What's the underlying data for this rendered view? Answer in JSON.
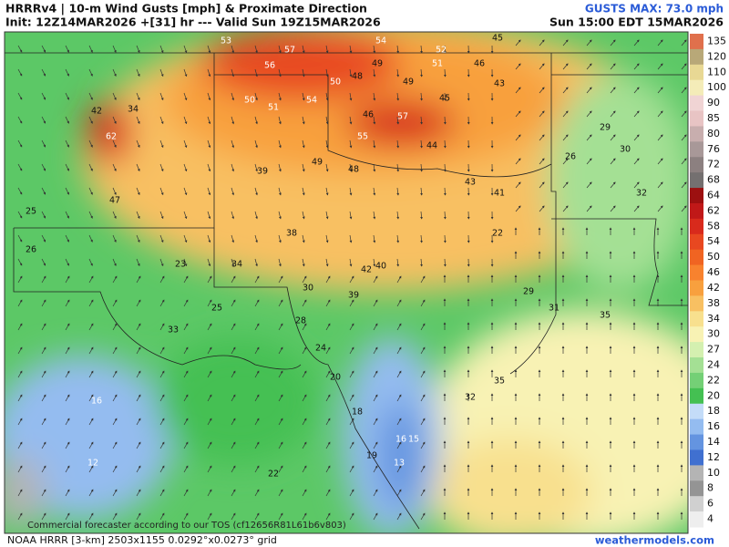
{
  "header": {
    "title": "HRRRv4 | 10-m Wind Gusts [mph] & Proximate Direction",
    "run": "Init: 12Z14MAR2026 +[31] hr --- Valid Sun 19Z15MAR2026",
    "max": "GUSTS MAX: 73.0 mph",
    "valid_local": "Sun 15:00 EDT 15MAR2026"
  },
  "colorbar": {
    "labels": [
      "135",
      "120",
      "110",
      "100",
      "90",
      "85",
      "80",
      "76",
      "72",
      "68",
      "64",
      "62",
      "58",
      "54",
      "50",
      "46",
      "42",
      "38",
      "34",
      "30",
      "27",
      "24",
      "22",
      "20",
      "18",
      "16",
      "14",
      "12",
      "10",
      "8",
      "6",
      "4"
    ],
    "colors": [
      "#e0704c",
      "#b8a878",
      "#e8d894",
      "#f4ecb8",
      "#f0d4d4",
      "#e8c4c4",
      "#c8aeae",
      "#a89898",
      "#8c8080",
      "#747070",
      "#9c1010",
      "#c01818",
      "#d82a1c",
      "#e84820",
      "#f06422",
      "#f8822e",
      "#f8a03e",
      "#f8c062",
      "#f8e08e",
      "#f8f2b4",
      "#d4f0b0",
      "#a4e094",
      "#74d076",
      "#44c052",
      "#c4dcf8",
      "#94bcf0",
      "#6494e0",
      "#4070d0",
      "#b4b4b4",
      "#949494",
      "#d0d0d0",
      "#eeeeee"
    ]
  },
  "map": {
    "gusts": [
      "57",
      "56",
      "53",
      "54",
      "52",
      "45",
      "49",
      "51",
      "46",
      "50",
      "51",
      "54",
      "50",
      "48",
      "49",
      "45",
      "43",
      "57",
      "55",
      "46",
      "62",
      "42",
      "34",
      "47",
      "39",
      "49",
      "48",
      "44",
      "43",
      "41",
      "40",
      "42",
      "38",
      "30",
      "39",
      "28",
      "24",
      "20",
      "22",
      "16",
      "12",
      "33",
      "25",
      "23",
      "25",
      "26",
      "34",
      "29",
      "30",
      "32",
      "26",
      "31",
      "35",
      "16",
      "13",
      "15",
      "19",
      "18",
      "32",
      "35",
      "22",
      "29"
    ],
    "watermark": "Commercial forecaster according to our TOS (cf12656R81L61b6v803)"
  },
  "footer": {
    "model": "NOAA HRRR [3-km] 2503x1155 0.0292°x0.0273° grid",
    "site": "weathermodels.com"
  }
}
